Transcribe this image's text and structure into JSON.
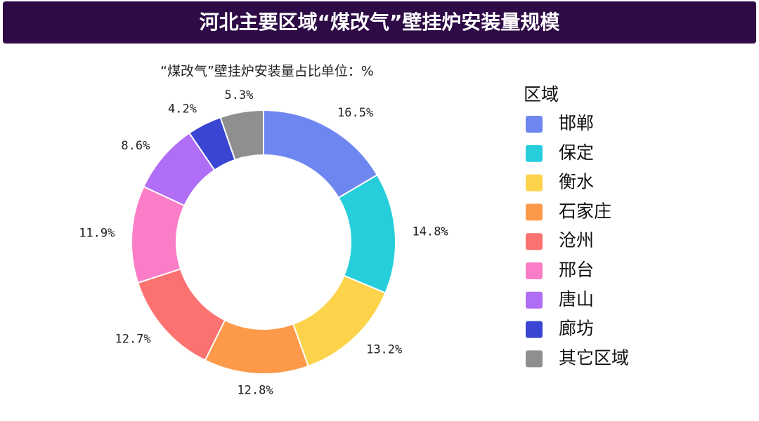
{
  "chart_data": {
    "type": "donut",
    "title": "河北主要区域“煤改气”壁挂炉安装量规模",
    "subtitle": "“煤改气”壁挂炉安装量占比单位：%",
    "legend_title": "区域",
    "legend_position": "right",
    "categories": [
      "邯郸",
      "保定",
      "衡水",
      "石家庄",
      "沧州",
      "邢台",
      "唐山",
      "廊坊",
      "其它区域"
    ],
    "values": [
      16.5,
      14.8,
      13.2,
      12.8,
      12.7,
      11.9,
      8.6,
      4.2,
      5.3
    ],
    "value_labels": [
      "16.5%",
      "14.8%",
      "13.2%",
      "12.8%",
      "12.7%",
      "11.9%",
      "8.6%",
      "4.2%",
      "5.3%"
    ],
    "colors": [
      "#6e86f0",
      "#26cedb",
      "#fdd34c",
      "#fd9a4a",
      "#fb7271",
      "#fb7dc7",
      "#b06df5",
      "#3a45d3",
      "#8f8f8f"
    ]
  }
}
